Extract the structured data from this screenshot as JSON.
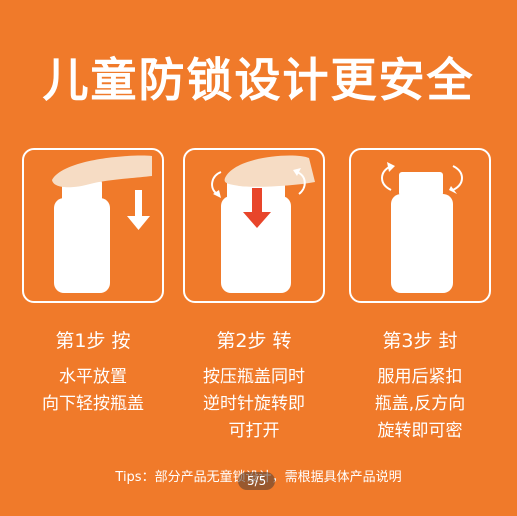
{
  "title": "儿童防锁设计更安全",
  "steps": [
    {
      "label": "第1步 按",
      "desc": [
        "水平放置",
        "向下轻按瓶盖"
      ]
    },
    {
      "label": "第2步 转",
      "desc": [
        "按压瓶盖同时",
        "逆时针旋转即",
        "可打开"
      ]
    },
    {
      "label": "第3步 封",
      "desc": [
        "服用后紧扣",
        "瓶盖,反方向",
        "旋转即可密"
      ]
    }
  ],
  "tips": "Tips：部分产品无童锁设计，需根据具体产品说明",
  "pager": "5/5",
  "colors": {
    "background": "#F07A2A",
    "bottle": "#FFFFFF",
    "hand": "#F6DCC4",
    "arrow_red": "#E8452A"
  }
}
